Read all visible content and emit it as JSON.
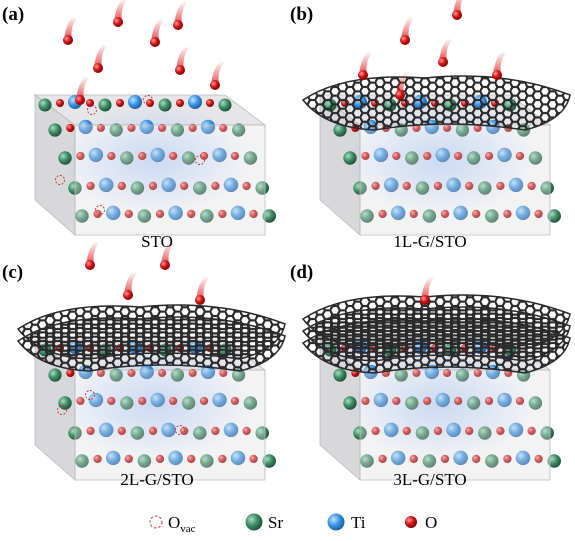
{
  "panels": [
    {
      "label": "(a)",
      "caption": "STO"
    },
    {
      "label": "(b)",
      "caption": "1L-G/STO"
    },
    {
      "label": "(c)",
      "caption": "2L-G/STO"
    },
    {
      "label": "(d)",
      "caption": "3L-G/STO"
    }
  ],
  "legend": [
    {
      "label": "O",
      "subscript": "vac"
    },
    {
      "label": "Sr"
    },
    {
      "label": "Ti"
    },
    {
      "label": "O"
    }
  ]
}
